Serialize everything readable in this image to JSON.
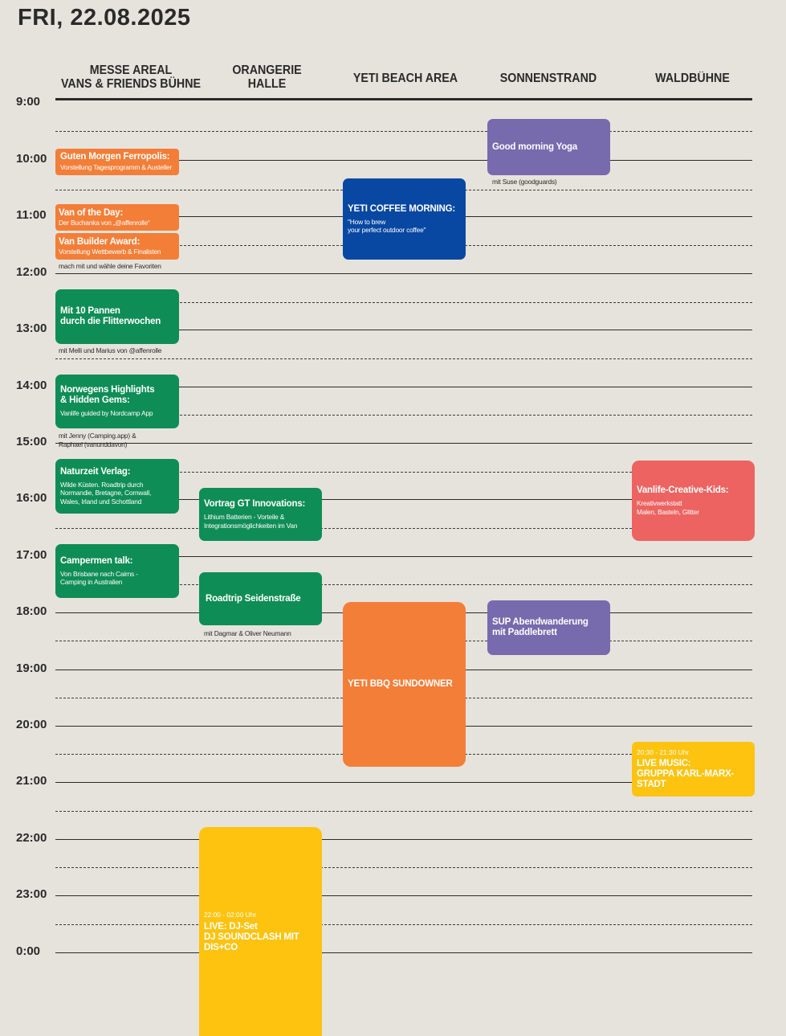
{
  "title": "FRI, 22.08.2025",
  "columns": [
    {
      "line1": "MESSE AREAL",
      "line2": "VANS & FRIENDS BÜHNE"
    },
    {
      "line1": "ORANGERIE",
      "line2": "HALLE"
    },
    {
      "line1": "YETI BEACH AREA",
      "line2": ""
    },
    {
      "line1": "SONNENSTRAND",
      "line2": ""
    },
    {
      "line1": "WALDBÜHNE",
      "line2": ""
    }
  ],
  "times": [
    "9:00",
    "10:00",
    "11:00",
    "12:00",
    "13:00",
    "14:00",
    "15:00",
    "16:00",
    "17:00",
    "18:00",
    "19:00",
    "20:00",
    "21:00",
    "22:00",
    "23:00",
    "0:00"
  ],
  "events": {
    "guten_morgen": {
      "title": "Guten Morgen Ferropolis:",
      "desc": "Vorstellung Tagesprogramm & Austeller"
    },
    "van_of_day": {
      "title": "Van of the Day:",
      "desc": "Der Buchanka von „@affenrolle“"
    },
    "van_builder": {
      "title": "Van Builder Award:",
      "desc": "Vorstellung Wettbewerb & Finalisten",
      "note": "mach mit und wähle deine Favoriten"
    },
    "pannen": {
      "title": "Mit 10 Pannen\ndurch die Flitterwochen",
      "note": "mit Melli und Marius von @affenrolle"
    },
    "norwegens": {
      "title": "Norwegens Highlights\n& Hidden Gems:",
      "desc": "Vanlife guided by Nordcamp App",
      "note": "mit Jenny (Camping.app) &\nRaphael (vanunddavon)"
    },
    "naturzeit": {
      "title": "Naturzeit Verlag:",
      "desc": "Wilde Küsten. Roadtrip durch\nNormandie, Bretagne, Cornwall,\nWales, Irland und Schottland"
    },
    "campermen": {
      "title": "Campermen talk:",
      "desc": "Von Brisbane nach Cairns -\nCamping in Australien"
    },
    "gt_innovations": {
      "title": "Vortrag GT Innovations:",
      "desc": "Lithium Batterien - Vorteile &\nIntegrationsmöglichkeiten im Van"
    },
    "roadtrip": {
      "title": "Roadtrip Seidenstraße",
      "note": "mit Dagmar & Oliver Neumann"
    },
    "dj_set": {
      "time": "22:00 - 02:00 Uhr",
      "title": "LIVE: DJ-Set\nDJ SOUNDCLASH MIT DIS+CO"
    },
    "yeti_coffee": {
      "title": "YETI COFFEE MORNING:",
      "desc": "\"How to brew\nyour perfect outdoor coffee\""
    },
    "yeti_bbq": {
      "title": "YETI BBQ SUNDOWNER"
    },
    "yoga": {
      "title": "Good morning Yoga",
      "note": "mit Suse (goodguards)"
    },
    "sup": {
      "title": "SUP Abendwanderung\nmit Paddlebrett"
    },
    "kids": {
      "title": "Vanlife-Creative-Kids:",
      "desc": "Kreativwerkstatt\nMalen, Basteln, Glitter"
    },
    "live_music": {
      "time": "20:30 - 21:30 Uhr",
      "title": "LIVE MUSIC:\nGRUPPA KARL-MARX-STADT"
    }
  },
  "colors": {
    "background": "#e6e3dd",
    "orange": "#f37e38",
    "green": "#0f8d56",
    "purple": "#776aad",
    "blue": "#0848a2",
    "red": "#ec6361",
    "yellow": "#fdc30e"
  }
}
